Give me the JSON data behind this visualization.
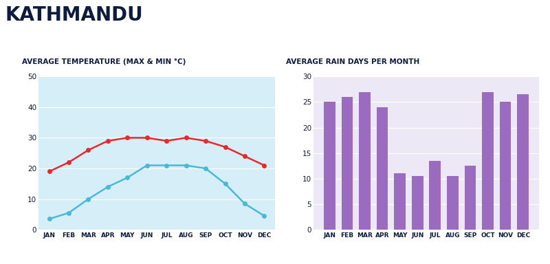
{
  "title": "KATHMANDU",
  "title_color": "#0d1b3e",
  "months": [
    "JAN",
    "FEB",
    "MAR",
    "APR",
    "MAY",
    "JUN",
    "JUL",
    "AUG",
    "SEP",
    "OCT",
    "NOV",
    "DEC"
  ],
  "temp_subtitle": "AVERAGE TEMPERATURE (MAX & MIN °C)",
  "rain_subtitle": "AVERAGE RAIN DAYS PER MONTH",
  "max_temp": [
    19,
    22,
    26,
    29,
    30,
    30,
    29,
    30,
    29,
    27,
    24,
    21
  ],
  "min_temp": [
    3.5,
    5.5,
    10,
    14,
    17,
    21,
    21,
    21,
    20,
    15,
    8.5,
    4.5
  ],
  "rain_days": [
    25,
    26,
    27,
    24,
    11,
    10.5,
    13.5,
    10.5,
    12.5,
    27,
    25,
    26.5
  ],
  "max_color": "#e8282a",
  "min_color": "#4ab8d8",
  "bar_color": "#9b6bbf",
  "temp_bg": "#d6eef7",
  "rain_bg": "#ede8f5",
  "temp_ylim": [
    0,
    50
  ],
  "rain_ylim": [
    0,
    30
  ],
  "temp_yticks": [
    0,
    10,
    20,
    30,
    40,
    50
  ],
  "rain_yticks": [
    0,
    5,
    10,
    15,
    20,
    25,
    30
  ],
  "subtitle_color": "#0d1b3e",
  "tick_color": "#0d1b3e",
  "grid_color": "#ffffff",
  "marker_size": 5,
  "line_width": 1.8
}
